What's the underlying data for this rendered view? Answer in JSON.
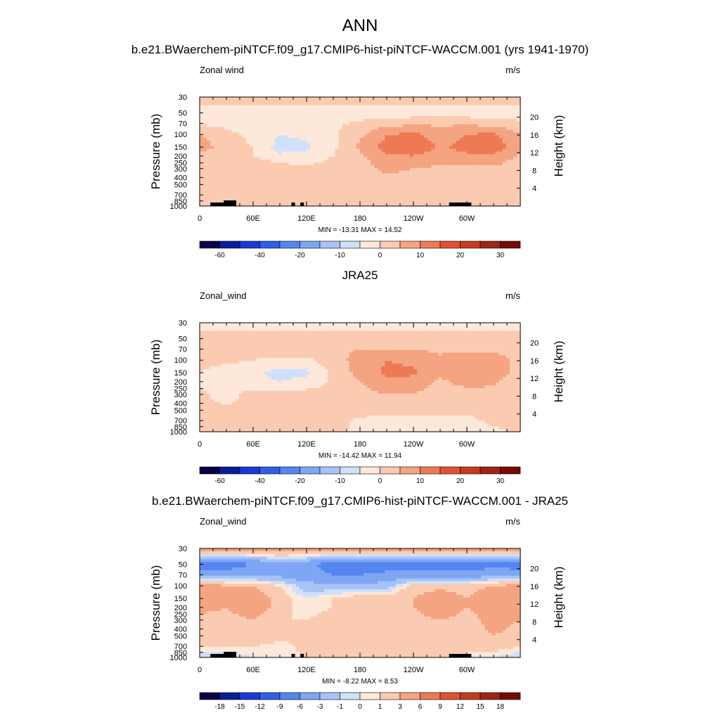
{
  "figure_title": "ANN",
  "chart_data": [
    {
      "type": "heatmap",
      "title": "b.e21.BWaerchem-piNTCF.f09_g17.CMIP6-hist-piNTCF-WACCM.001 (yrs 1941-1970)",
      "left_label": "Zonal wind",
      "right_label": "m/s",
      "ylabel": "Pressure (mb)",
      "ylabel_right": "Height (km)",
      "xticks": [
        "0",
        "60E",
        "120E",
        "180",
        "120W",
        "60W"
      ],
      "yticks": [
        "30",
        "50",
        "70",
        "100",
        "150",
        "200",
        "250",
        "300",
        "400",
        "500",
        "700",
        "850",
        "1000"
      ],
      "yticks_right": [
        "20",
        "16",
        "12",
        "8",
        "4"
      ],
      "stats": "MIN = -13.31  MAX =  14.52",
      "colorbar_labels": [
        "-60",
        "-40",
        "-20",
        "-10",
        "0",
        "10",
        "20",
        "30"
      ],
      "colorbar_levels": [
        -70,
        -60,
        -50,
        -40,
        -30,
        -20,
        -15,
        -10,
        -5,
        0,
        5,
        10,
        15,
        20,
        25,
        30,
        35
      ],
      "longitude": [
        0,
        30,
        60,
        90,
        120,
        150,
        180,
        210,
        240,
        270,
        300,
        330,
        360
      ],
      "pressure": [
        30,
        50,
        70,
        100,
        150,
        200,
        300,
        500,
        700,
        1000
      ],
      "values": [
        [
          3,
          3,
          3,
          3,
          3,
          3,
          3,
          3,
          3,
          3,
          3,
          3,
          3
        ],
        [
          -3,
          -3,
          -3,
          -3,
          -3,
          -2,
          -3,
          -3,
          -3,
          -3,
          -3,
          -3,
          -3
        ],
        [
          -1,
          -1,
          -2,
          -3,
          -2,
          -1,
          1,
          3,
          4,
          4,
          4,
          3,
          1
        ],
        [
          5,
          1,
          -1,
          -5,
          -4,
          -1,
          4,
          10,
          11,
          8,
          10,
          11,
          5
        ],
        [
          8,
          2,
          0,
          -7,
          -6,
          -1,
          6,
          12,
          14,
          9,
          12,
          13,
          7
        ],
        [
          3,
          1,
          0,
          -4,
          -3,
          0,
          4,
          9,
          10,
          7,
          9,
          9,
          4
        ],
        [
          2,
          3,
          5,
          3,
          1,
          2,
          3,
          6,
          5,
          4,
          4,
          4,
          2
        ],
        [
          2,
          3,
          4,
          4,
          3,
          2,
          2,
          3,
          3,
          2,
          2,
          2,
          2
        ],
        [
          1,
          2,
          3,
          3,
          4,
          3,
          2,
          2,
          2,
          1,
          1,
          1,
          1
        ],
        [
          1,
          1,
          2,
          2,
          2,
          1,
          1,
          1,
          1,
          1,
          1,
          1,
          1
        ]
      ]
    },
    {
      "type": "heatmap",
      "title": "JRA25",
      "left_label": "Zonal_wind",
      "right_label": "m/s",
      "ylabel": "Pressure (mb)",
      "ylabel_right": "Height (km)",
      "xticks": [
        "0",
        "60E",
        "120E",
        "180",
        "120W",
        "60W"
      ],
      "yticks": [
        "30",
        "50",
        "70",
        "100",
        "150",
        "200",
        "250",
        "300",
        "400",
        "500",
        "700",
        "850",
        "1000"
      ],
      "yticks_right": [
        "20",
        "16",
        "12",
        "8",
        "4"
      ],
      "stats": "MIN = -14.42  MAX =  11.94",
      "colorbar_labels": [
        "-60",
        "-40",
        "-20",
        "-10",
        "0",
        "10",
        "20",
        "30"
      ],
      "colorbar_levels": [
        -70,
        -60,
        -50,
        -40,
        -30,
        -20,
        -15,
        -10,
        -5,
        0,
        5,
        10,
        15,
        20,
        25,
        30,
        35
      ],
      "longitude": [
        0,
        30,
        60,
        90,
        120,
        150,
        180,
        210,
        240,
        270,
        300,
        330,
        360
      ],
      "pressure": [
        30,
        50,
        70,
        100,
        150,
        200,
        300,
        500,
        700,
        1000
      ],
      "values": [
        [
          -2,
          -2,
          -2,
          -2,
          -2,
          -2,
          -2,
          -2,
          -2,
          -2,
          -2,
          -2,
          -2
        ],
        [
          2,
          2,
          2,
          2,
          2,
          2,
          2,
          2,
          2,
          2,
          2,
          2,
          2
        ],
        [
          2,
          2,
          2,
          3,
          3,
          4,
          5,
          5,
          5,
          4,
          4,
          4,
          2
        ],
        [
          1,
          1,
          0,
          -1,
          -1,
          3,
          7,
          10,
          9,
          6,
          8,
          8,
          3
        ],
        [
          0,
          -2,
          -4,
          -7,
          -6,
          1,
          7,
          11,
          11,
          6,
          10,
          9,
          2
        ],
        [
          -1,
          -2,
          -3,
          -5,
          -3,
          1,
          5,
          9,
          8,
          4,
          7,
          6,
          1
        ],
        [
          1,
          -2,
          2,
          1,
          2,
          1,
          3,
          5,
          5,
          2,
          3,
          3,
          1
        ],
        [
          1,
          1,
          1,
          2,
          2,
          1,
          2,
          1,
          1,
          1,
          1,
          1,
          1
        ],
        [
          1,
          2,
          3,
          2,
          2,
          2,
          -1,
          -1,
          -1,
          -1,
          -1,
          1,
          1
        ],
        [
          1,
          1,
          1,
          1,
          1,
          1,
          -1,
          -2,
          -2,
          -2,
          -2,
          -1,
          1
        ]
      ]
    },
    {
      "type": "heatmap",
      "title": "b.e21.BWaerchem-piNTCF.f09_g17.CMIP6-hist-piNTCF-WACCM.001 - JRA25",
      "left_label": "Zonal_wind",
      "right_label": "m/s",
      "ylabel": "Pressure (mb)",
      "ylabel_right": "Height (km)",
      "xticks": [
        "0",
        "60E",
        "120E",
        "180",
        "120W",
        "60W"
      ],
      "yticks": [
        "30",
        "50",
        "70",
        "100",
        "150",
        "200",
        "250",
        "300",
        "400",
        "500",
        "700",
        "850",
        "1000"
      ],
      "yticks_right": [
        "20",
        "16",
        "12",
        "8",
        "4"
      ],
      "stats": "MIN =  -8.22  MAX =   8.53",
      "colorbar_labels": [
        "-18",
        "-15",
        "-12",
        "-9",
        "-6",
        "-3",
        "-1",
        "0",
        "1",
        "3",
        "6",
        "9",
        "12",
        "15",
        "18"
      ],
      "colorbar_levels": [
        -21,
        -18,
        -15,
        -12,
        -9,
        -6,
        -3,
        -1,
        0,
        1,
        3,
        6,
        9,
        12,
        15,
        18,
        21
      ],
      "longitude": [
        0,
        30,
        60,
        90,
        120,
        150,
        180,
        210,
        240,
        270,
        300,
        330,
        360
      ],
      "pressure": [
        30,
        50,
        70,
        100,
        150,
        200,
        300,
        500,
        700,
        1000
      ],
      "values": [
        [
          5,
          5,
          5,
          5,
          5,
          5,
          5,
          5,
          5,
          5,
          5,
          5,
          5
        ],
        [
          -8,
          -8,
          -6,
          -4,
          -5,
          -8,
          -8,
          -8,
          -8,
          -8,
          -8,
          -7,
          -8
        ],
        [
          -4,
          -4,
          -4,
          -4,
          -5,
          -6,
          -6,
          -5,
          -5,
          -5,
          -5,
          -4,
          -4
        ],
        [
          5,
          3,
          3,
          1,
          -2,
          -2,
          -2,
          -2,
          2,
          2,
          2,
          3,
          4
        ],
        [
          6,
          3,
          5,
          2,
          0,
          1,
          2,
          2,
          3,
          5,
          3,
          5,
          6
        ],
        [
          4,
          3,
          5,
          2,
          0,
          1,
          2,
          2,
          3,
          5,
          3,
          4,
          4
        ],
        [
          2,
          2,
          3,
          1,
          1,
          2,
          2,
          2,
          2,
          3,
          2,
          4,
          3
        ],
        [
          2,
          2,
          3,
          2,
          1,
          2,
          2,
          2,
          2,
          2,
          2,
          3,
          2
        ],
        [
          1,
          1,
          1,
          0,
          2,
          1,
          2,
          3,
          2,
          2,
          1,
          2,
          1
        ],
        [
          -1,
          -1,
          0,
          0,
          1,
          1,
          2,
          2,
          2,
          2,
          1,
          0,
          -1
        ]
      ]
    }
  ],
  "colormap": [
    "#08004a",
    "#0a1d9a",
    "#1a3ad6",
    "#2f5ee8",
    "#5586f0",
    "#7ea6f4",
    "#a7c3f7",
    "#cfe0fa",
    "#fde8da",
    "#fbcbb1",
    "#f5a482",
    "#ee7a55",
    "#e2522f",
    "#c73a1f",
    "#a02412",
    "#730d06"
  ],
  "topography_color": "#000000"
}
